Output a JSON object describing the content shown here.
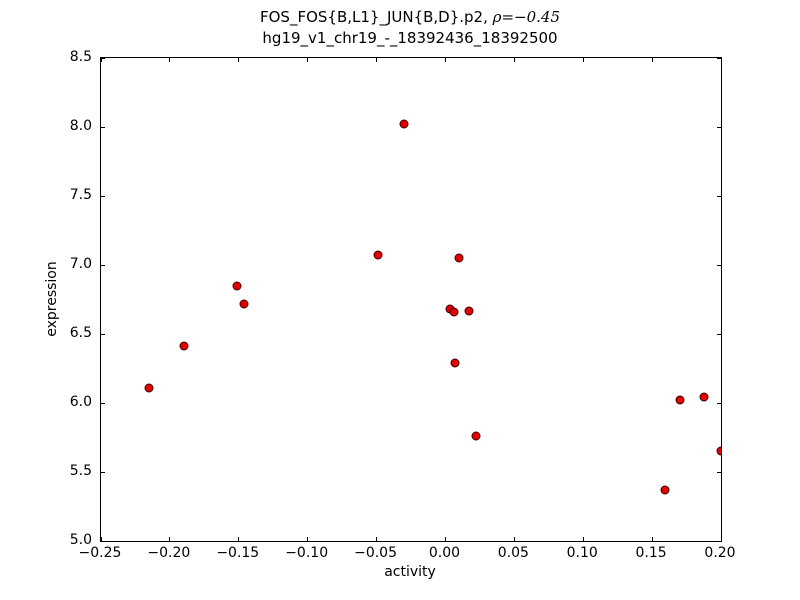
{
  "figure": {
    "title_line1_main": "FOS_FOS{B,L1}_JUN{B,D}.p2, ",
    "title_line1_math": "ρ=−0.45",
    "title_line2": "hg19_v1_chr19_-_18392436_18392500",
    "xlabel": "activity",
    "ylabel": "expression"
  },
  "chart_data": {
    "type": "scatter",
    "title": "FOS_FOS{B,L1}_JUN{B,D}.p2, ρ=−0.45",
    "subtitle": "hg19_v1_chr19_-_18392436_18392500",
    "xlabel": "activity",
    "ylabel": "expression",
    "xlim": [
      -0.25,
      0.2
    ],
    "ylim": [
      5.0,
      8.5
    ],
    "grid": false,
    "legend": "none",
    "x_ticks": [
      -0.25,
      -0.2,
      -0.15,
      -0.1,
      -0.05,
      0.0,
      0.05,
      0.1,
      0.15,
      0.2
    ],
    "x_tick_labels": [
      "−0.25",
      "−0.20",
      "−0.15",
      "−0.10",
      "−0.05",
      "0.00",
      "0.05",
      "0.10",
      "0.15",
      "0.20"
    ],
    "y_ticks": [
      5.0,
      5.5,
      6.0,
      6.5,
      7.0,
      7.5,
      8.0,
      8.5
    ],
    "y_tick_labels": [
      "5.0",
      "5.5",
      "6.0",
      "6.5",
      "7.0",
      "7.5",
      "8.0",
      "8.5"
    ],
    "marker": {
      "shape": "circle",
      "fill": "#e50000",
      "edge": "#3c0000",
      "size": 9
    },
    "points": [
      {
        "x": -0.215,
        "y": 6.11
      },
      {
        "x": -0.19,
        "y": 6.41
      },
      {
        "x": -0.151,
        "y": 6.85
      },
      {
        "x": -0.146,
        "y": 6.72
      },
      {
        "x": -0.049,
        "y": 7.07
      },
      {
        "x": -0.03,
        "y": 8.02
      },
      {
        "x": 0.003,
        "y": 6.68
      },
      {
        "x": 0.006,
        "y": 6.66
      },
      {
        "x": 0.01,
        "y": 7.05
      },
      {
        "x": 0.017,
        "y": 6.67
      },
      {
        "x": 0.007,
        "y": 6.29
      },
      {
        "x": 0.022,
        "y": 5.76
      },
      {
        "x": 0.159,
        "y": 5.37
      },
      {
        "x": 0.17,
        "y": 6.02
      },
      {
        "x": 0.188,
        "y": 6.04
      },
      {
        "x": 0.2,
        "y": 5.65
      }
    ]
  }
}
